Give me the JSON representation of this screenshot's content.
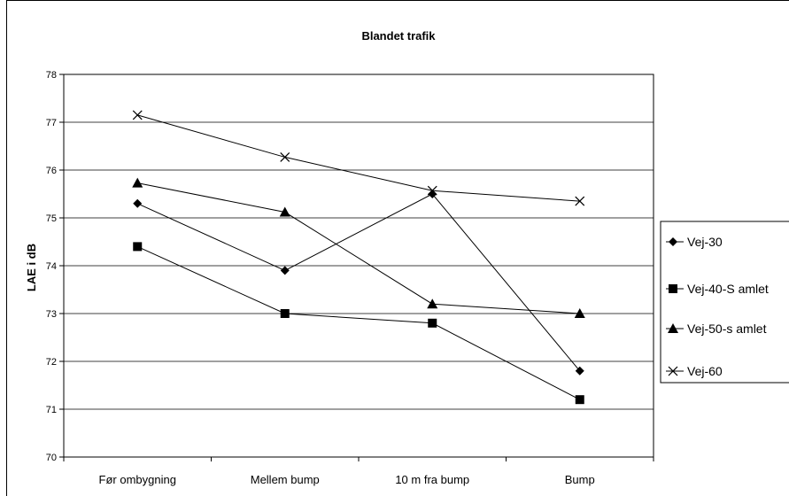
{
  "chart_data": {
    "type": "line",
    "title": "Blandet trafik",
    "xlabel": "",
    "ylabel": "LAE i dB",
    "ylim": [
      70,
      78
    ],
    "yticks": [
      70,
      71,
      72,
      73,
      74,
      75,
      76,
      77,
      78
    ],
    "grid": true,
    "legend_position": "right",
    "categories": [
      "Før ombygning",
      "Mellem bump",
      "10 m fra bump",
      "Bump"
    ],
    "series": [
      {
        "name": "Vej-30",
        "marker": "diamond",
        "values": [
          75.3,
          73.9,
          75.5,
          71.8
        ]
      },
      {
        "name": "Vej-40-S amlet",
        "marker": "square",
        "values": [
          74.4,
          73.0,
          72.8,
          71.2
        ]
      },
      {
        "name": "Vej-50-s amlet",
        "marker": "triangle",
        "values": [
          75.73,
          75.12,
          73.2,
          73.0
        ]
      },
      {
        "name": "Vej-60",
        "marker": "x",
        "values": [
          77.15,
          76.27,
          75.57,
          75.35
        ]
      }
    ],
    "colors": {
      "line": "#000000",
      "grid": "#000000",
      "plot_bg": "#ffffff"
    }
  }
}
